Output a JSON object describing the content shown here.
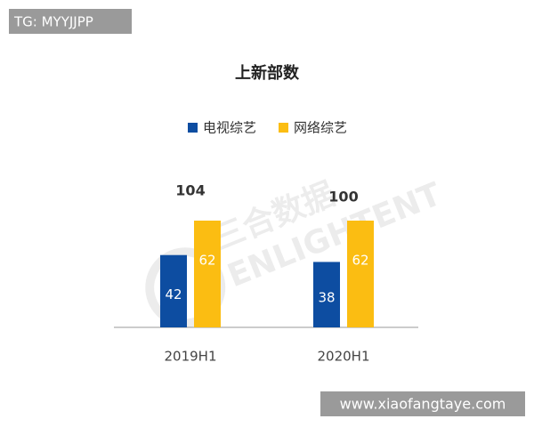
{
  "tag": "TG: MYYJJPP",
  "site": "www.xiaofangtaye.com",
  "watermark": [
    "三合数据",
    "ENLIGHTENT"
  ],
  "chart_data": {
    "type": "bar",
    "title": "上新部数",
    "categories": [
      "2019H1",
      "2020H1"
    ],
    "series": [
      {
        "name": "电视综艺",
        "color": "#0d4da1",
        "values": [
          42,
          38
        ]
      },
      {
        "name": "网络综艺",
        "color": "#fbbd12",
        "values": [
          62,
          62
        ]
      }
    ],
    "totals": [
      104,
      100
    ]
  }
}
